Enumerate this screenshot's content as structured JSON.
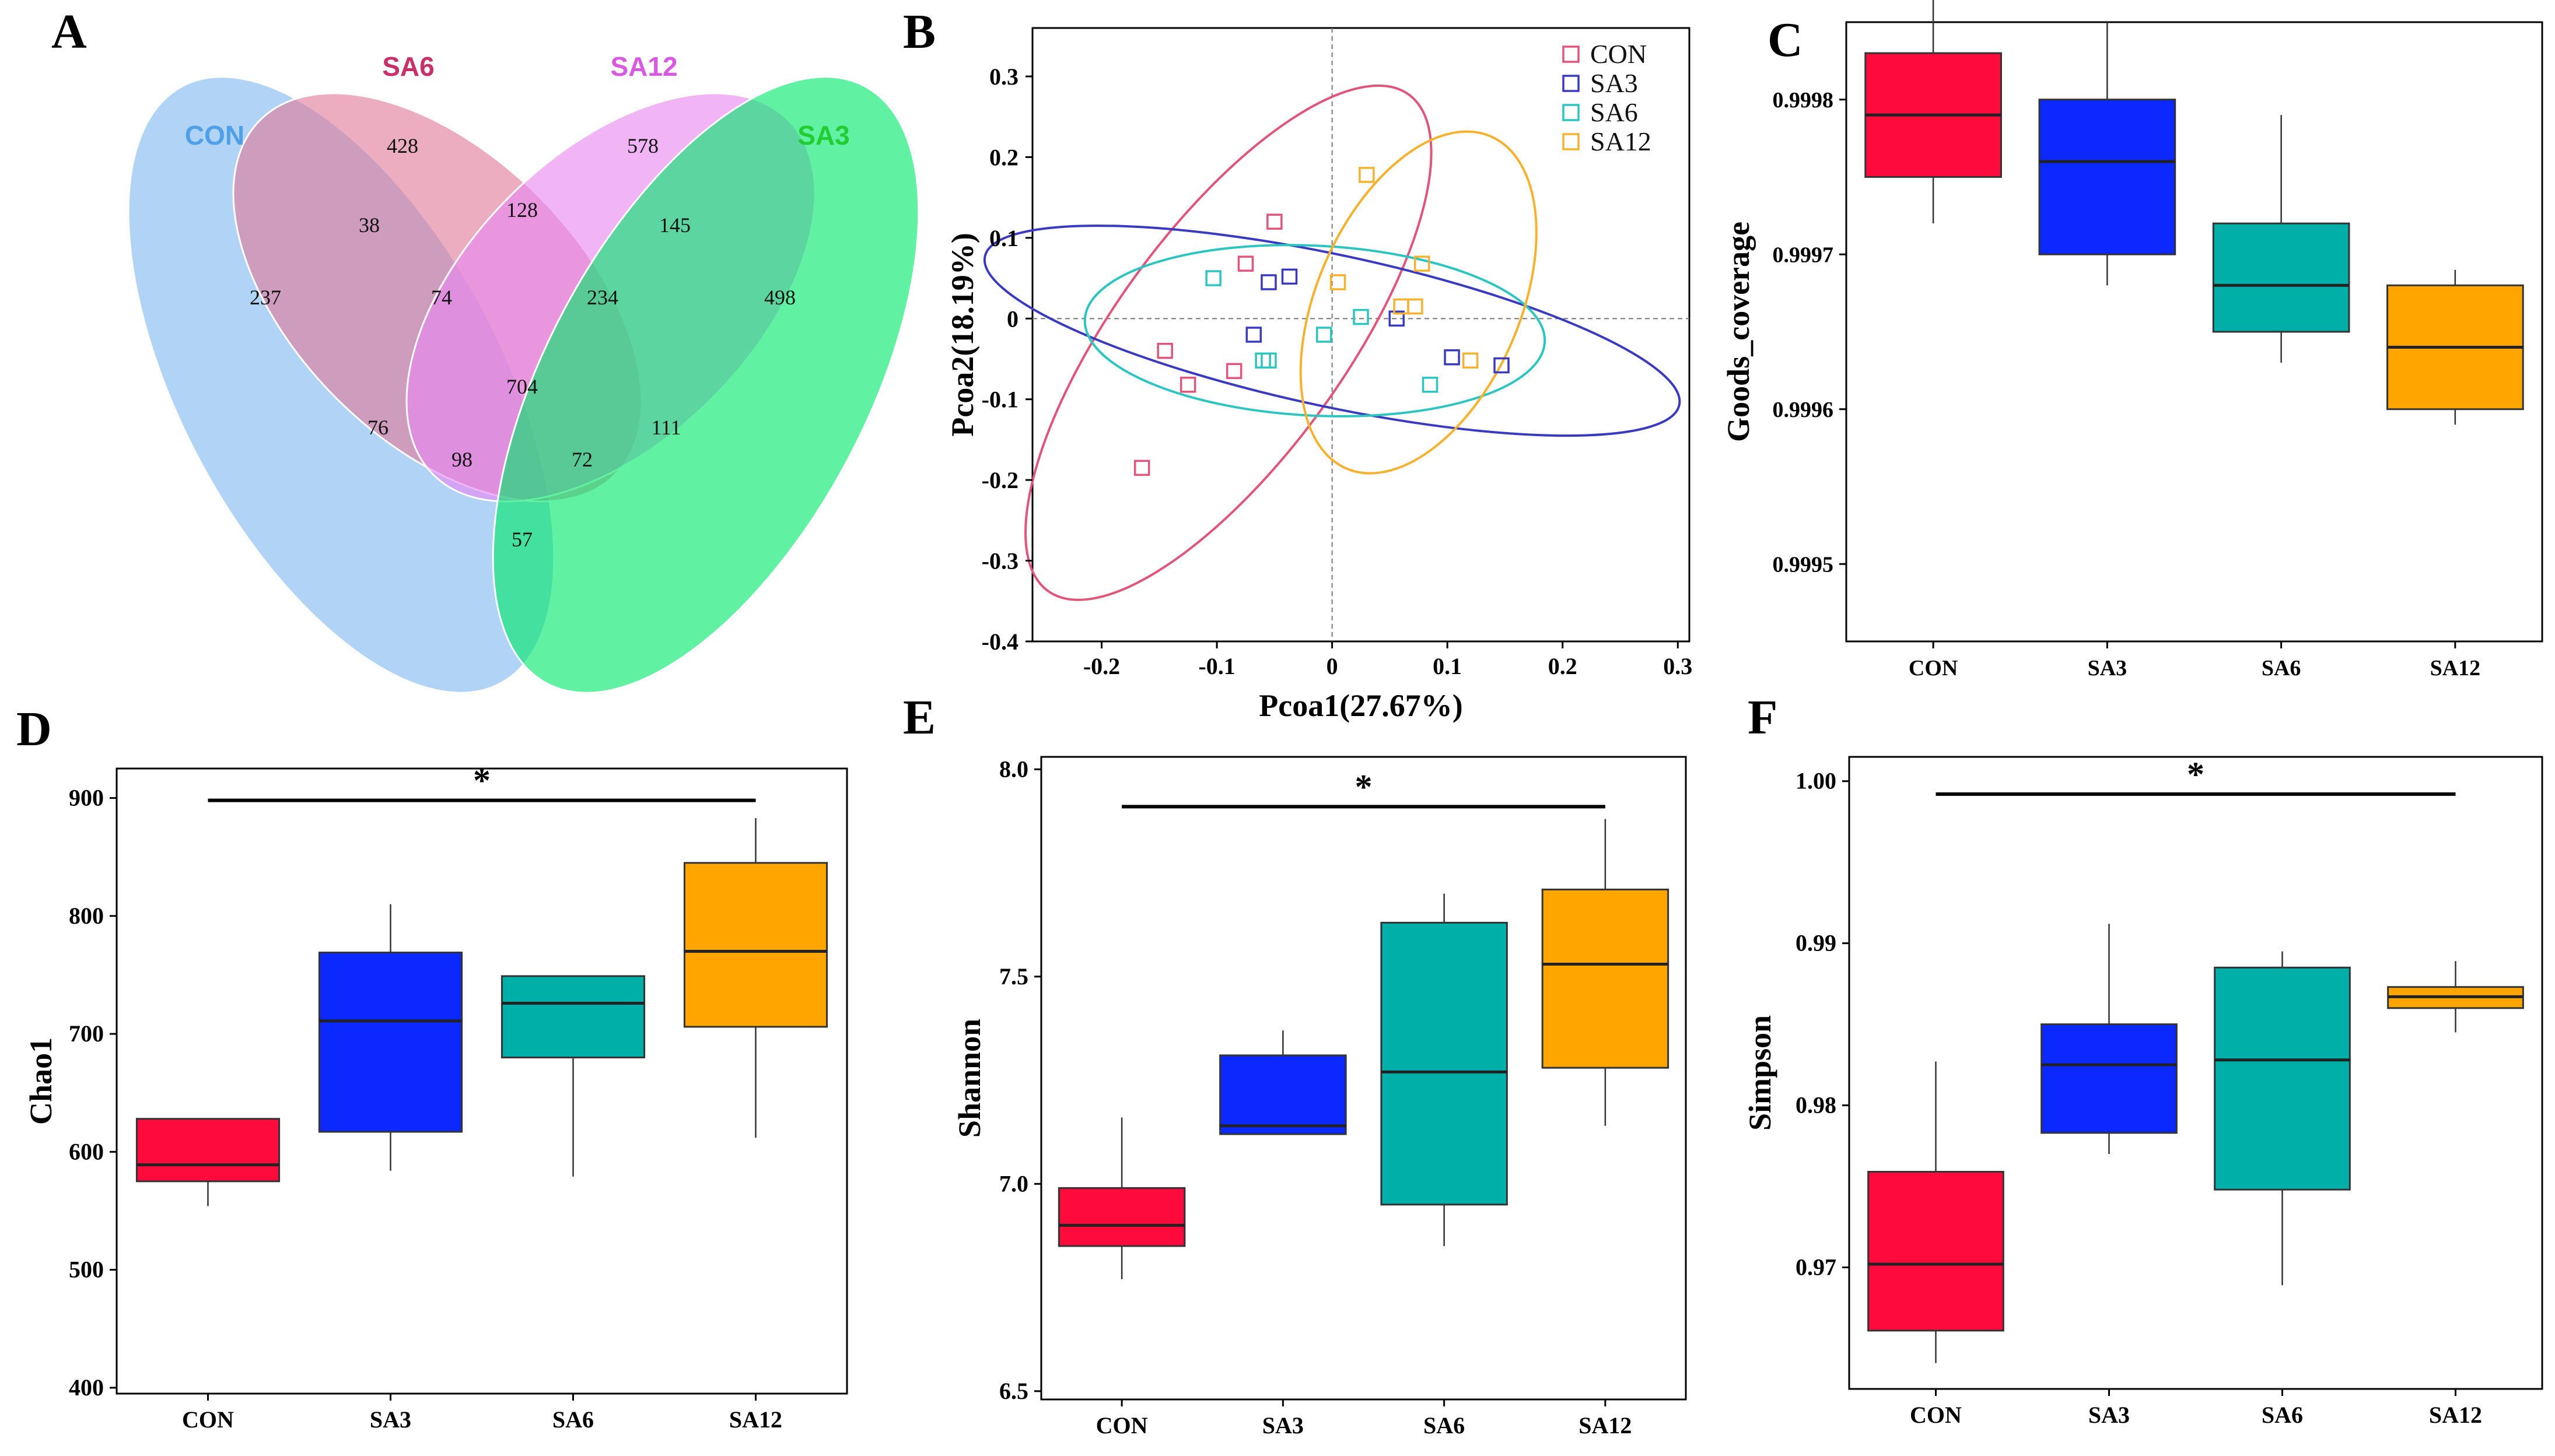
{
  "colors": {
    "CON": "#FF0A3C",
    "SA3": "#0A28FF",
    "SA6": "#00B0A8",
    "SA12": "#FFA500",
    "pcoa_CON": "#E0557A",
    "pcoa_SA3": "#3A3AC0",
    "pcoa_SA6": "#2EC4C0",
    "pcoa_SA12": "#F4B230",
    "venn_CON": "#7FB8F0",
    "venn_SA6": "#E07A9A",
    "venn_SA12": "#E887F0",
    "venn_SA3": "#00E86A",
    "label_CON": "#4FA0E8",
    "label_SA6": "#C8306A",
    "label_SA12": "#D85AE0",
    "label_SA3": "#22CC33"
  },
  "chart_data": [
    {
      "panel": "A",
      "type": "venn",
      "sets": [
        "CON",
        "SA6",
        "SA12",
        "SA3"
      ],
      "regions": [
        {
          "sets": [
            "CON"
          ],
          "value": "237"
        },
        {
          "sets": [
            "SA6"
          ],
          "value": "428"
        },
        {
          "sets": [
            "SA12"
          ],
          "value": "578"
        },
        {
          "sets": [
            "SA3"
          ],
          "value": "498"
        },
        {
          "sets": [
            "CON",
            "SA6"
          ],
          "value": "38"
        },
        {
          "sets": [
            "SA6",
            "SA12"
          ],
          "value": "128"
        },
        {
          "sets": [
            "SA12",
            "SA3"
          ],
          "value": "145"
        },
        {
          "sets": [
            "CON",
            "SA6",
            "SA12"
          ],
          "value": "74"
        },
        {
          "sets": [
            "SA6",
            "SA12",
            "SA3"
          ],
          "value": "234"
        },
        {
          "sets": [
            "CON",
            "SA6",
            "SA12",
            "SA3"
          ],
          "value": "704"
        },
        {
          "sets": [
            "CON",
            "SA12"
          ],
          "value": "76"
        },
        {
          "sets": [
            "SA6",
            "SA3"
          ],
          "value": "111"
        },
        {
          "sets": [
            "CON",
            "SA12",
            "SA3"
          ],
          "value": "98"
        },
        {
          "sets": [
            "CON",
            "SA6",
            "SA3"
          ],
          "value": "72"
        },
        {
          "sets": [
            "CON",
            "SA3"
          ],
          "value": "57"
        }
      ]
    },
    {
      "panel": "B",
      "type": "scatter",
      "xlabel": "Pcoa1(27.67%)",
      "ylabel": "Pcoa2(18.19%)",
      "xlim": [
        -0.26,
        0.31
      ],
      "ylim": [
        -0.4,
        0.36
      ],
      "xticks": [
        "-0.2",
        "-0.1",
        "0",
        "0.1",
        "0.2",
        "0.3"
      ],
      "xtick_values": [
        -0.2,
        -0.1,
        0,
        0.1,
        0.2,
        0.3
      ],
      "yticks": [
        "0.3",
        "0.2",
        "0.1",
        "0",
        "-0.1",
        "-0.2",
        "-0.3",
        "-0.4"
      ],
      "ytick_values": [
        0.3,
        0.2,
        0.1,
        0,
        -0.1,
        -0.2,
        -0.3,
        -0.4
      ],
      "legend": [
        "CON",
        "SA3",
        "SA6",
        "SA12"
      ],
      "legend_position": "top-right",
      "series": [
        {
          "name": "CON",
          "points": [
            [
              -0.05,
              0.12
            ],
            [
              -0.075,
              0.068
            ],
            [
              -0.145,
              -0.04
            ],
            [
              -0.125,
              -0.082
            ],
            [
              -0.085,
              -0.065
            ],
            [
              -0.165,
              -0.185
            ]
          ],
          "ellipse": {
            "cx": -0.09,
            "cy": -0.03,
            "rx": 0.345,
            "ry": 0.105,
            "angle_deg": 63
          }
        },
        {
          "name": "SA3",
          "points": [
            [
              -0.055,
              0.045
            ],
            [
              -0.037,
              0.052
            ],
            [
              -0.068,
              -0.02
            ],
            [
              0.056,
              0.0
            ],
            [
              0.104,
              -0.048
            ],
            [
              0.147,
              -0.058
            ]
          ],
          "ellipse": {
            "cx": 0.0,
            "cy": -0.015,
            "rx": 0.315,
            "ry": 0.09,
            "angle_deg": -17
          }
        },
        {
          "name": "SA6",
          "points": [
            [
              -0.103,
              0.05
            ],
            [
              -0.06,
              -0.052
            ],
            [
              -0.055,
              -0.052
            ],
            [
              -0.007,
              -0.02
            ],
            [
              0.025,
              0.002
            ],
            [
              0.085,
              -0.082
            ]
          ],
          "ellipse": {
            "cx": -0.015,
            "cy": -0.015,
            "rx": 0.2,
            "ry": 0.105,
            "angle_deg": -4
          }
        },
        {
          "name": "SA12",
          "points": [
            [
              0.03,
              0.178
            ],
            [
              0.005,
              0.045
            ],
            [
              0.06,
              0.015
            ],
            [
              0.072,
              0.015
            ],
            [
              0.078,
              0.068
            ],
            [
              0.12,
              -0.052
            ]
          ],
          "ellipse": {
            "cx": 0.075,
            "cy": 0.02,
            "rx": 0.215,
            "ry": 0.09,
            "angle_deg": 73
          }
        }
      ]
    },
    {
      "panel": "C",
      "type": "box",
      "ylabel": "Goods_coverage",
      "categories": [
        "CON",
        "SA3",
        "SA6",
        "SA12"
      ],
      "ylim": [
        0.99945,
        0.99985
      ],
      "yticks": [
        "0.9995",
        "0.9996",
        "0.9997",
        "0.9998"
      ],
      "ytick_values": [
        0.9995,
        0.9996,
        0.9997,
        0.9998
      ],
      "boxes": [
        {
          "name": "CON",
          "min": 0.99972,
          "q1": 0.99975,
          "median": 0.99979,
          "q3": 0.99983,
          "max": 0.99987
        },
        {
          "name": "SA3",
          "min": 0.99968,
          "q1": 0.9997,
          "median": 0.99976,
          "q3": 0.9998,
          "max": 0.99985
        },
        {
          "name": "SA6",
          "min": 0.99963,
          "q1": 0.99965,
          "median": 0.99968,
          "q3": 0.99972,
          "max": 0.99979
        },
        {
          "name": "SA12",
          "min": 0.99959,
          "q1": 0.9996,
          "median": 0.99964,
          "q3": 0.99968,
          "max": 0.99969
        }
      ]
    },
    {
      "panel": "D",
      "type": "box",
      "ylabel": "Chao1",
      "categories": [
        "CON",
        "SA3",
        "SA6",
        "SA12"
      ],
      "ylim": [
        395,
        925
      ],
      "yticks": [
        "900",
        "800",
        "700",
        "600",
        "500",
        "400"
      ],
      "ytick_values": [
        900,
        800,
        700,
        600,
        500,
        400
      ],
      "significance": {
        "from": "CON",
        "to": "SA12",
        "value": 898,
        "label": "*"
      },
      "boxes": [
        {
          "name": "CON",
          "min": 554,
          "q1": 575,
          "median": 589,
          "q3": 628,
          "max": 628
        },
        {
          "name": "SA3",
          "min": 584,
          "q1": 617,
          "median": 711,
          "q3": 769,
          "max": 810
        },
        {
          "name": "SA6",
          "min": 579,
          "q1": 680,
          "median": 726,
          "q3": 749,
          "max": 749
        },
        {
          "name": "SA12",
          "min": 612,
          "q1": 706,
          "median": 770,
          "q3": 845,
          "max": 883
        }
      ]
    },
    {
      "panel": "E",
      "type": "box",
      "ylabel": "Shannon",
      "categories": [
        "CON",
        "SA3",
        "SA6",
        "SA12"
      ],
      "ylim": [
        6.48,
        8.03
      ],
      "yticks": [
        "8.0",
        "7.5",
        "7.0",
        "6.5"
      ],
      "ytick_values": [
        8.0,
        7.5,
        7.0,
        6.5
      ],
      "significance": {
        "from": "CON",
        "to": "SA12",
        "value": 7.91,
        "label": "*"
      },
      "boxes": [
        {
          "name": "CON",
          "min": 6.77,
          "q1": 6.85,
          "median": 6.9,
          "q3": 6.99,
          "max": 7.16
        },
        {
          "name": "SA3",
          "min": 7.12,
          "q1": 7.12,
          "median": 7.14,
          "q3": 7.31,
          "max": 7.37
        },
        {
          "name": "SA6",
          "min": 6.85,
          "q1": 6.95,
          "median": 7.27,
          "q3": 7.63,
          "max": 7.7
        },
        {
          "name": "SA12",
          "min": 7.14,
          "q1": 7.28,
          "median": 7.53,
          "q3": 7.71,
          "max": 7.88
        }
      ]
    },
    {
      "panel": "F",
      "type": "box",
      "ylabel": "Simpson",
      "categories": [
        "CON",
        "SA3",
        "SA6",
        "SA12"
      ],
      "ylim": [
        0.9625,
        1.0015
      ],
      "yticks": [
        "1.00",
        "0.99",
        "0.98",
        "0.97"
      ],
      "ytick_values": [
        1.0,
        0.99,
        0.98,
        0.97
      ],
      "significance": {
        "from": "CON",
        "to": "SA12",
        "value": 0.9992,
        "label": "*"
      },
      "boxes": [
        {
          "name": "CON",
          "min": 0.9641,
          "q1": 0.9661,
          "median": 0.9702,
          "q3": 0.9759,
          "max": 0.9827
        },
        {
          "name": "SA3",
          "min": 0.977,
          "q1": 0.9783,
          "median": 0.9825,
          "q3": 0.985,
          "max": 0.9912
        },
        {
          "name": "SA6",
          "min": 0.9689,
          "q1": 0.9748,
          "median": 0.9828,
          "q3": 0.9885,
          "max": 0.9895
        },
        {
          "name": "SA12",
          "min": 0.9845,
          "q1": 0.986,
          "median": 0.9867,
          "q3": 0.9873,
          "max": 0.9889
        }
      ]
    }
  ]
}
